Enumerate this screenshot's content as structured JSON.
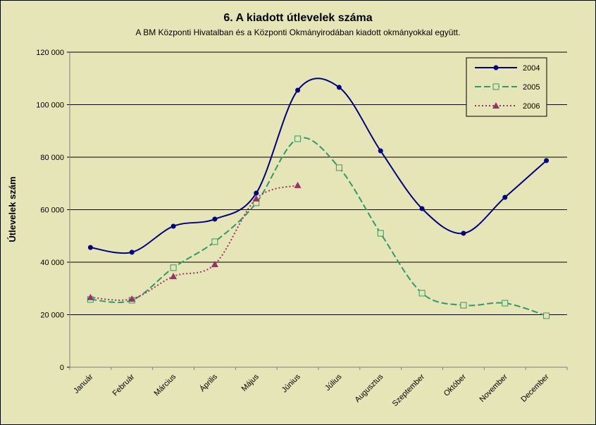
{
  "chart_data": {
    "type": "line",
    "title": "6. A  kiadott útlevelek száma",
    "subtitle": "A BM Központi Hivatalban és a Központi Okmányirodában kiadott okmányokkal együtt.",
    "y_label": "Útlevelek szám",
    "categories": [
      "Január",
      "Február",
      "Március",
      "Április",
      "Május",
      "Június",
      "Július",
      "Augusztus",
      "Szeptember",
      "Október",
      "November",
      "December"
    ],
    "series": [
      {
        "name": "2004",
        "color": "#000080",
        "marker": "circle",
        "dash": "solid",
        "values": [
          45600,
          43800,
          53700,
          56400,
          66300,
          105500,
          106600,
          82400,
          60400,
          51000,
          64700,
          78700
        ]
      },
      {
        "name": "2005",
        "color": "#339966",
        "marker": "square",
        "dash": "dashed",
        "values": [
          25800,
          25500,
          37900,
          47800,
          62600,
          87000,
          76000,
          51000,
          28200,
          23600,
          24400,
          19600
        ]
      },
      {
        "name": "2006",
        "color": "#993366",
        "marker": "triangle",
        "dash": "dotted",
        "values": [
          26600,
          26000,
          34600,
          39200,
          64200,
          69300,
          null,
          null,
          null,
          null,
          null,
          null
        ]
      }
    ],
    "ylim": [
      0,
      120000
    ],
    "yticks": [
      0,
      {
        "value": 20000,
        "label": "20 000"
      },
      {
        "value": 40000,
        "label": "40 000"
      },
      {
        "value": 60000,
        "label": "60 000"
      },
      {
        "value": 80000,
        "label": "80 000"
      },
      {
        "value": 100000,
        "label": "100 000"
      },
      {
        "value": 120000,
        "label": "120 000"
      }
    ],
    "grid": true,
    "smooth": true,
    "legend": "top-right"
  }
}
